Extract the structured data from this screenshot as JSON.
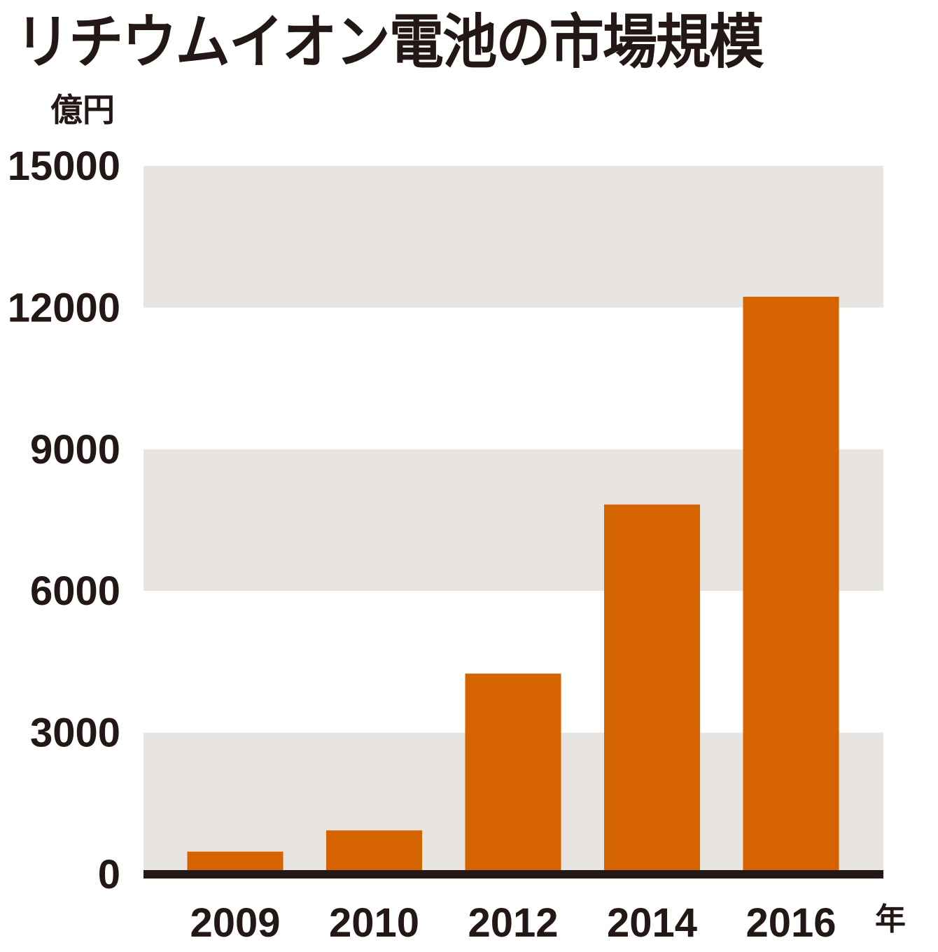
{
  "chart_data": {
    "type": "bar",
    "title": "リチウムイオン電池の市場規模",
    "ylabel": "億円",
    "xlabel": "年",
    "categories": [
      "2009",
      "2010",
      "2012",
      "2014",
      "2016"
    ],
    "values": [
      480,
      930,
      4250,
      7830,
      12230
    ],
    "ylim": [
      0,
      15000
    ],
    "yticks": [
      0,
      3000,
      6000,
      9000,
      12000,
      15000
    ],
    "grid": "alternating bands",
    "colors": {
      "bar": "#d46300",
      "band": "#e8e4e1",
      "axis": "#231815",
      "text": "#231815"
    }
  }
}
